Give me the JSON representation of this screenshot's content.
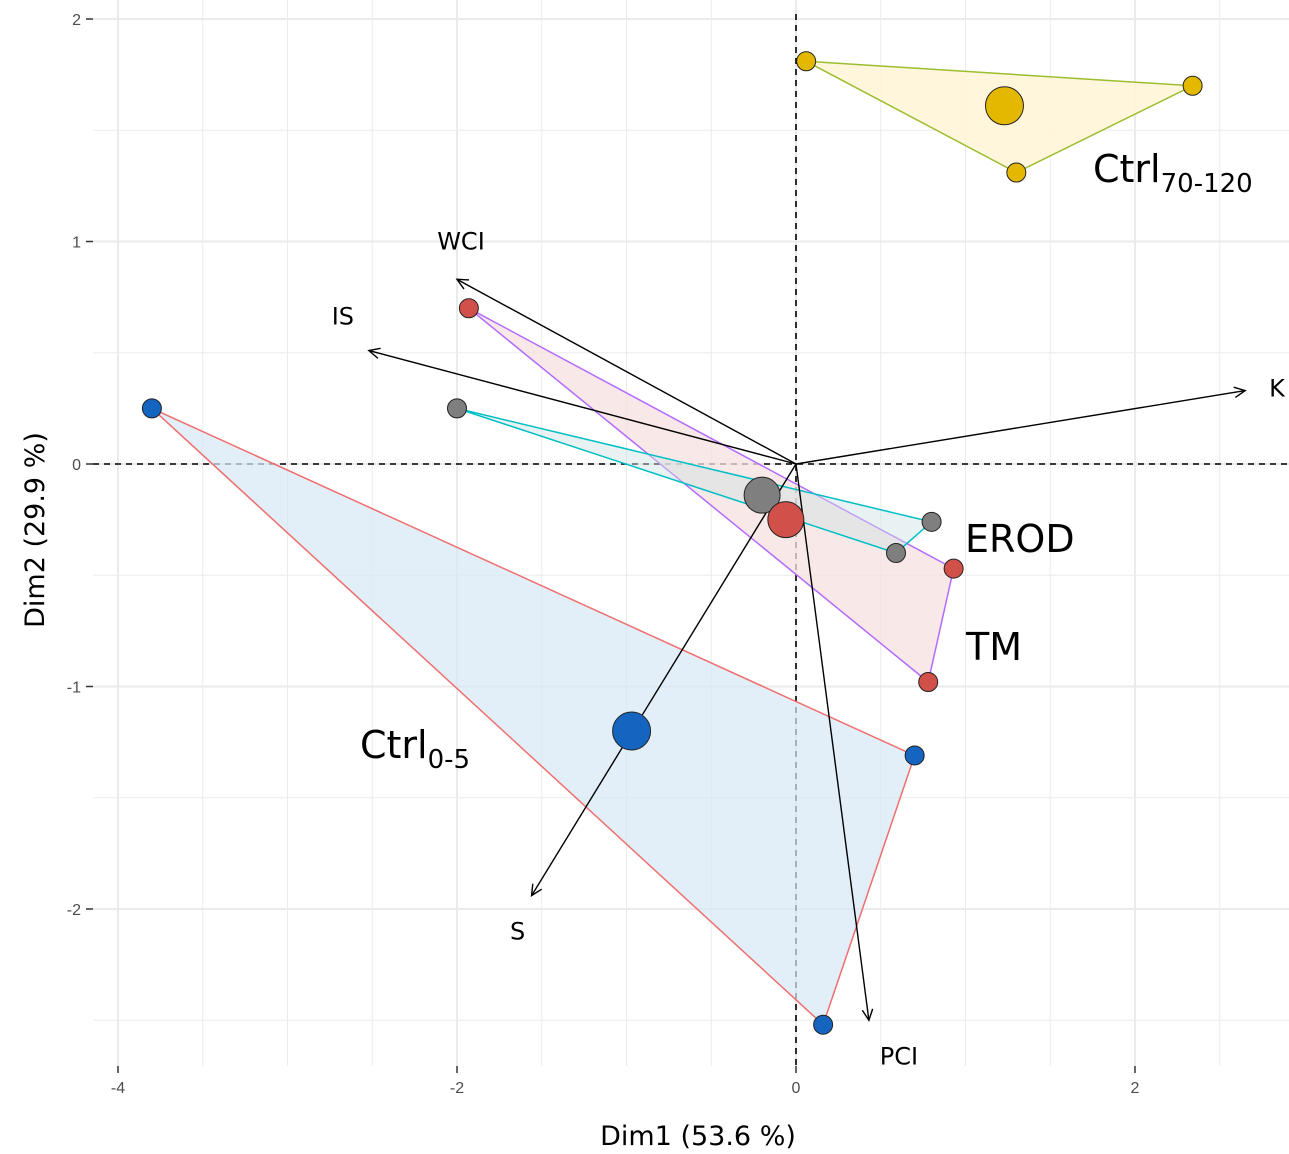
{
  "chart_data": {
    "type": "scatter",
    "subtype": "pca-biplot",
    "title": "",
    "xlabel": "Dim1 (53.6 %)",
    "ylabel": "Dim2 (29.9 %)",
    "xlim": [
      -4.2,
      2.9
    ],
    "ylim": [
      -2.72,
      2.05
    ],
    "x_ticks": [
      -4,
      -2,
      0,
      2
    ],
    "y_ticks": [
      2,
      1,
      0,
      -1,
      -2
    ],
    "x_tick_labels": [
      "-4",
      "-2",
      "0",
      "2"
    ],
    "y_tick_labels": [
      "2",
      "1",
      "0",
      "-1",
      "-2"
    ],
    "grid": true,
    "zero_lines": "dashed",
    "colors": {
      "ctrl70": "#E5B800",
      "ctrl0": "#1565C0",
      "tm": "#D1504A",
      "erod": "#7F7F7F",
      "ctrl70_hull_fill": "#FFF4D6",
      "ctrl70_hull_stroke": "#9BBE2F",
      "ctrl0_hull_fill": "#D6E8F5",
      "ctrl0_hull_stroke": "#F06E6E",
      "tm_hull_fill": "#F5E0DF",
      "tm_hull_stroke": "#B36BFF",
      "erod_hull_fill": "#CFE3E4",
      "erod_hull_stroke": "#00BFC4"
    },
    "groups": [
      {
        "key": "ctrl70",
        "label_main": "Ctrl",
        "label_sub": "70-120",
        "points": [
          [
            0.06,
            1.81
          ],
          [
            2.34,
            1.7
          ],
          [
            1.3,
            1.31
          ]
        ],
        "centroid": [
          1.23,
          1.61
        ]
      },
      {
        "key": "ctrl0",
        "label_main": "Ctrl",
        "label_sub": "0-5",
        "points": [
          [
            -3.8,
            0.25
          ],
          [
            0.7,
            -1.31
          ],
          [
            0.16,
            -2.52
          ]
        ],
        "centroid": [
          -0.97,
          -1.2
        ]
      },
      {
        "key": "tm",
        "label_main": "TM",
        "label_sub": "",
        "points": [
          [
            -1.93,
            0.7
          ],
          [
            0.93,
            -0.47
          ],
          [
            0.78,
            -0.98
          ]
        ],
        "centroid": [
          -0.06,
          -0.25
        ]
      },
      {
        "key": "erod",
        "label_main": "EROD",
        "label_sub": "",
        "points": [
          [
            -2.0,
            0.25
          ],
          [
            0.8,
            -0.26
          ],
          [
            0.59,
            -0.4
          ]
        ],
        "centroid": [
          -0.2,
          -0.14
        ]
      }
    ],
    "variables": [
      {
        "name": "WCI",
        "x": -2.0,
        "y": 0.83
      },
      {
        "name": "IS",
        "x": -2.52,
        "y": 0.51
      },
      {
        "name": "K",
        "x": 2.65,
        "y": 0.33
      },
      {
        "name": "S",
        "x": -1.56,
        "y": -1.94
      },
      {
        "name": "PCI",
        "x": 0.43,
        "y": -2.5
      }
    ]
  }
}
